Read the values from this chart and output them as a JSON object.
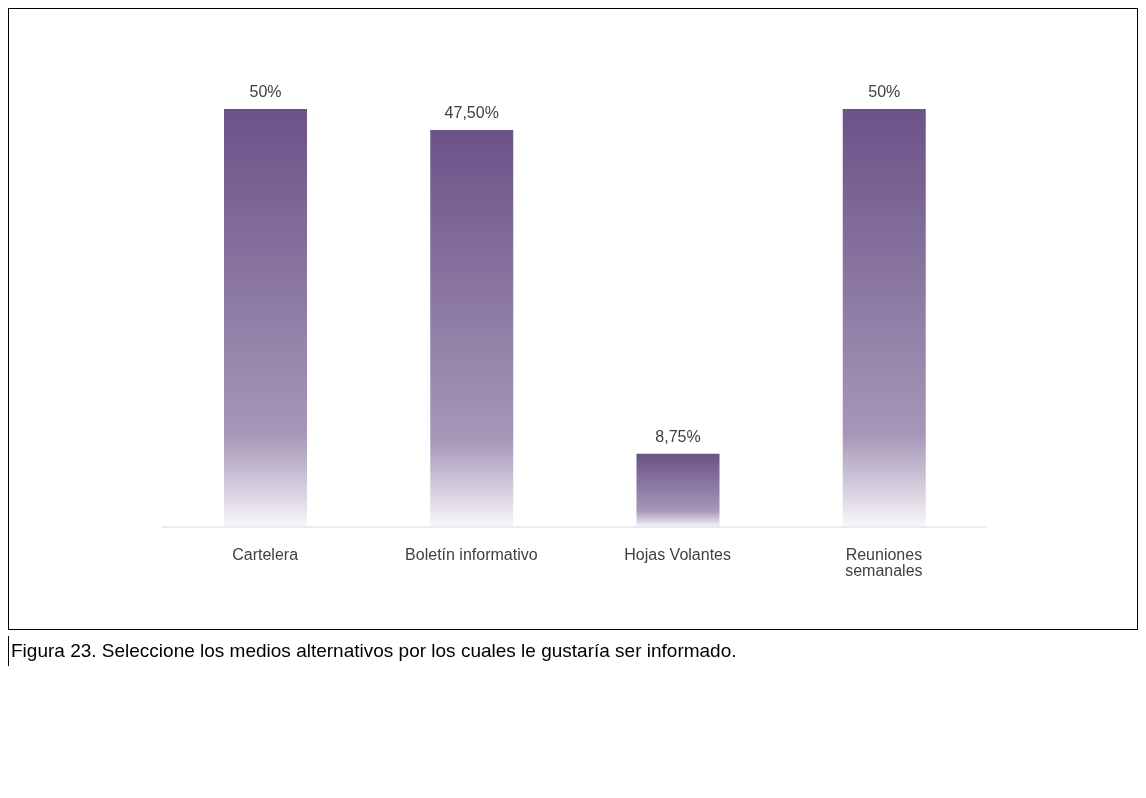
{
  "chart_data": {
    "type": "bar",
    "categories": [
      "Cartelera",
      "Boletín informativo",
      "Hojas Volantes",
      "Reuniones semanales"
    ],
    "values": [
      50,
      47.5,
      8.75,
      50
    ],
    "value_labels": [
      "50%",
      "47,50%",
      "8,75%",
      "50%"
    ],
    "color": "#6b5288",
    "grid": false,
    "legend": false,
    "annotations": [
      "Figura 23. Seleccione los medios alternativos por los cuales le gustaría ser informado."
    ]
  }
}
